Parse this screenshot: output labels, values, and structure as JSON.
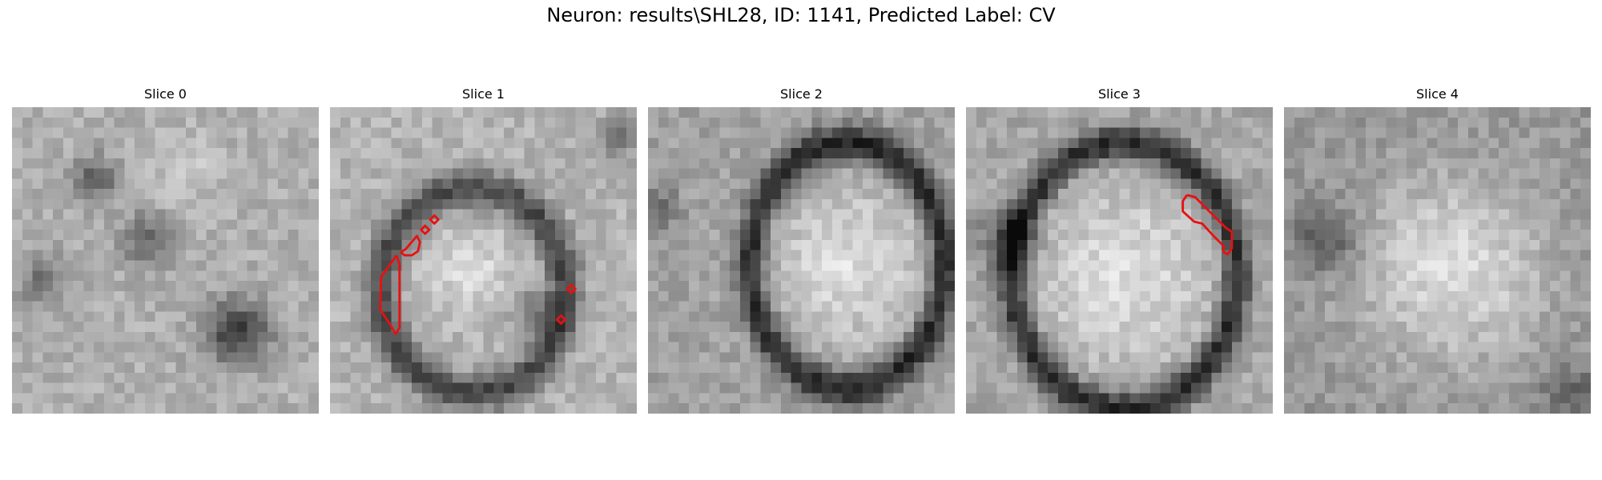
{
  "figure": {
    "title": "Neuron: results\\SHL28, ID: 1141, Predicted Label: CV"
  },
  "panels": [
    {
      "title": "Slice 0",
      "has_contour": false
    },
    {
      "title": "Slice 1",
      "has_contour": true
    },
    {
      "title": "Slice 2",
      "has_contour": false
    },
    {
      "title": "Slice 3",
      "has_contour": true
    },
    {
      "title": "Slice 4",
      "has_contour": false
    }
  ],
  "colors": {
    "contour": "#e81010",
    "background": "#ffffff"
  }
}
